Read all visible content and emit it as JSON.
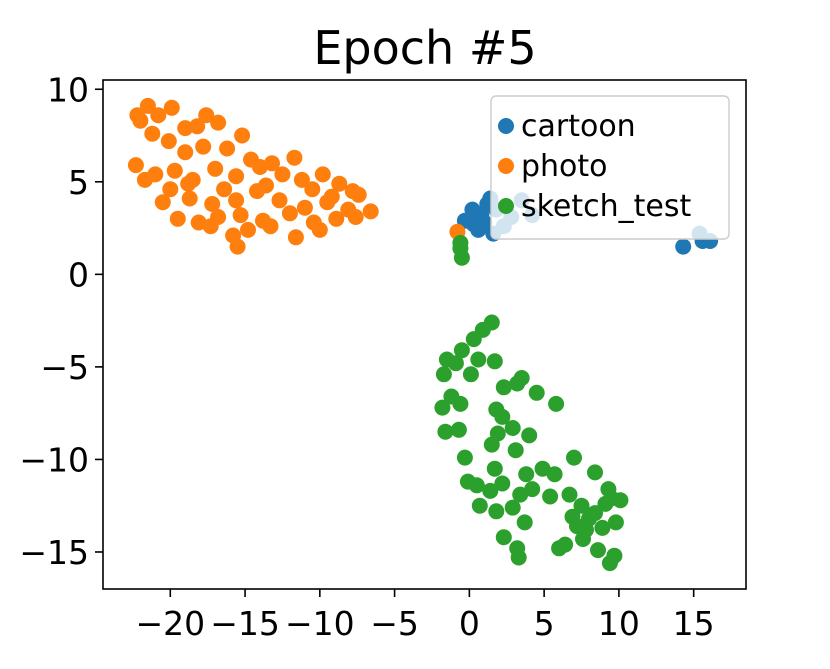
{
  "chart_data": {
    "type": "scatter",
    "title": "Epoch #5",
    "xlabel": "",
    "ylabel": "",
    "xlim": [
      -24.5,
      18.5
    ],
    "ylim": [
      -17,
      10.5
    ],
    "xticks": [
      -20,
      -15,
      -10,
      -5,
      0,
      5,
      10,
      15
    ],
    "yticks": [
      10,
      5,
      0,
      -5,
      -10,
      -15
    ],
    "xtick_labels": [
      "−20",
      "−15",
      "−10",
      "−5",
      "0",
      "5",
      "10",
      "15"
    ],
    "ytick_labels": [
      "10",
      "5",
      "0",
      "−5",
      "−10",
      "−15"
    ],
    "grid": false,
    "legend_position": "top-right",
    "series": [
      {
        "name": "cartoon",
        "color": "#1f77b4",
        "points": [
          [
            -0.3,
            2.9
          ],
          [
            0.3,
            2.7
          ],
          [
            0.8,
            3.2
          ],
          [
            1.2,
            3.8
          ],
          [
            1.4,
            4.1
          ],
          [
            0.6,
            2.4
          ],
          [
            1.0,
            2.8
          ],
          [
            1.8,
            3.5
          ],
          [
            2.3,
            2.6
          ],
          [
            2.8,
            3.1
          ],
          [
            3.5,
            4.0
          ],
          [
            4.2,
            3.2
          ],
          [
            1.6,
            2.2
          ],
          [
            0.2,
            3.5
          ],
          [
            14.3,
            1.5
          ],
          [
            15.6,
            1.8
          ],
          [
            16.1,
            1.8
          ],
          [
            15.4,
            2.2
          ]
        ]
      },
      {
        "name": "photo",
        "color": "#ff7f0e",
        "points": [
          [
            -22.2,
            8.6
          ],
          [
            -22.0,
            8.3
          ],
          [
            -21.5,
            9.1
          ],
          [
            -20.8,
            8.6
          ],
          [
            -19.9,
            9.0
          ],
          [
            -19.0,
            7.9
          ],
          [
            -18.2,
            8.0
          ],
          [
            -17.6,
            8.6
          ],
          [
            -16.8,
            8.2
          ],
          [
            -15.2,
            7.5
          ],
          [
            -21.2,
            7.6
          ],
          [
            -20.1,
            7.2
          ],
          [
            -19.0,
            6.6
          ],
          [
            -17.8,
            6.9
          ],
          [
            -16.2,
            6.8
          ],
          [
            -14.6,
            6.2
          ],
          [
            -13.2,
            6.0
          ],
          [
            -11.7,
            6.3
          ],
          [
            -22.3,
            5.9
          ],
          [
            -21.0,
            5.4
          ],
          [
            -19.7,
            5.6
          ],
          [
            -18.5,
            5.1
          ],
          [
            -17.0,
            5.7
          ],
          [
            -15.6,
            5.3
          ],
          [
            -14.0,
            5.8
          ],
          [
            -12.5,
            5.4
          ],
          [
            -11.2,
            5.1
          ],
          [
            -9.8,
            5.4
          ],
          [
            -8.7,
            4.9
          ],
          [
            -7.8,
            4.5
          ],
          [
            -21.7,
            5.1
          ],
          [
            -20.0,
            4.6
          ],
          [
            -18.7,
            4.1
          ],
          [
            -17.2,
            3.8
          ],
          [
            -15.6,
            4.0
          ],
          [
            -14.2,
            4.5
          ],
          [
            -12.7,
            4.0
          ],
          [
            -11.0,
            3.6
          ],
          [
            -9.5,
            3.9
          ],
          [
            -8.1,
            3.5
          ],
          [
            -6.6,
            3.4
          ],
          [
            -20.5,
            3.9
          ],
          [
            -19.5,
            3.0
          ],
          [
            -18.1,
            2.8
          ],
          [
            -16.8,
            3.1
          ],
          [
            -15.3,
            3.2
          ],
          [
            -13.8,
            2.9
          ],
          [
            -12.0,
            3.3
          ],
          [
            -10.4,
            2.8
          ],
          [
            -8.9,
            3.0
          ],
          [
            -7.6,
            3.1
          ],
          [
            -17.3,
            2.6
          ],
          [
            -15.8,
            2.1
          ],
          [
            -14.8,
            2.4
          ],
          [
            -13.3,
            2.6
          ],
          [
            -11.6,
            2.0
          ],
          [
            -10.0,
            2.4
          ],
          [
            -15.5,
            1.5
          ],
          [
            -16.4,
            4.6
          ],
          [
            -13.6,
            4.8
          ],
          [
            -10.5,
            4.6
          ],
          [
            -9.2,
            4.2
          ],
          [
            -7.4,
            4.3
          ],
          [
            -18.8,
            4.9
          ],
          [
            -0.8,
            2.3
          ]
        ]
      },
      {
        "name": "sketch_test",
        "color": "#2ca02c",
        "points": [
          [
            -0.6,
            1.4
          ],
          [
            -0.6,
            1.7
          ],
          [
            -0.5,
            0.9
          ],
          [
            1.5,
            -2.6
          ],
          [
            0.9,
            -3.0
          ],
          [
            0.3,
            -3.5
          ],
          [
            -0.5,
            -4.1
          ],
          [
            -1.5,
            -4.6
          ],
          [
            -1.7,
            -5.4
          ],
          [
            -0.9,
            -4.8
          ],
          [
            0.6,
            -4.6
          ],
          [
            1.7,
            -4.7
          ],
          [
            3.5,
            -5.6
          ],
          [
            3.2,
            -5.9
          ],
          [
            2.3,
            -6.1
          ],
          [
            4.5,
            -6.4
          ],
          [
            -1.8,
            -7.2
          ],
          [
            -1.2,
            -6.6
          ],
          [
            0.1,
            -5.4
          ],
          [
            -0.6,
            -7.0
          ],
          [
            1.8,
            -7.3
          ],
          [
            2.2,
            -7.7
          ],
          [
            5.8,
            -7.0
          ],
          [
            -1.6,
            -8.5
          ],
          [
            -0.7,
            -8.4
          ],
          [
            1.9,
            -8.6
          ],
          [
            2.9,
            -8.3
          ],
          [
            4.0,
            -8.7
          ],
          [
            -0.3,
            -9.9
          ],
          [
            1.5,
            -9.2
          ],
          [
            3.1,
            -9.5
          ],
          [
            4.9,
            -10.5
          ],
          [
            7.0,
            -9.9
          ],
          [
            1.7,
            -10.5
          ],
          [
            3.8,
            -10.8
          ],
          [
            5.7,
            -10.8
          ],
          [
            8.4,
            -10.7
          ],
          [
            0.5,
            -11.4
          ],
          [
            -0.1,
            -11.2
          ],
          [
            1.4,
            -11.7
          ],
          [
            2.2,
            -11.3
          ],
          [
            3.4,
            -11.9
          ],
          [
            4.2,
            -11.6
          ],
          [
            5.4,
            -12.0
          ],
          [
            6.7,
            -11.9
          ],
          [
            7.5,
            -12.5
          ],
          [
            9.3,
            -11.6
          ],
          [
            10.1,
            -12.2
          ],
          [
            0.7,
            -12.5
          ],
          [
            1.8,
            -12.8
          ],
          [
            2.9,
            -12.6
          ],
          [
            3.7,
            -13.4
          ],
          [
            6.9,
            -13.1
          ],
          [
            7.8,
            -13.8
          ],
          [
            8.4,
            -12.9
          ],
          [
            9.1,
            -12.4
          ],
          [
            9.8,
            -13.4
          ],
          [
            2.3,
            -14.2
          ],
          [
            3.2,
            -14.8
          ],
          [
            6.0,
            -14.8
          ],
          [
            7.6,
            -14.3
          ],
          [
            8.6,
            -14.9
          ],
          [
            9.7,
            -15.2
          ],
          [
            3.3,
            -15.3
          ],
          [
            9.4,
            -15.6
          ],
          [
            6.4,
            -14.6
          ],
          [
            8.0,
            -13.2
          ],
          [
            8.9,
            -13.7
          ],
          [
            9.5,
            -12.1
          ],
          [
            7.2,
            -13.6
          ]
        ]
      }
    ]
  }
}
